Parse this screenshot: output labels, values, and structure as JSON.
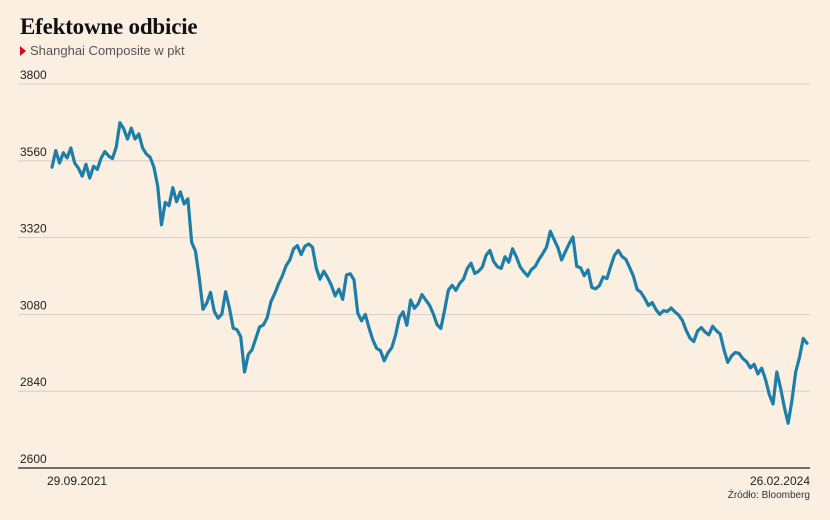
{
  "title": "Efektowne odbicie",
  "subtitle": "Shanghai Composite w pkt",
  "source": "Źródło: Bloomberg",
  "colors": {
    "line": "#1d7ea7",
    "marker": "#e3001b",
    "background": "#fbefe2",
    "grid": "#cfc8c0"
  },
  "chart_data": {
    "type": "line",
    "title": "Efektowne odbicie",
    "ylabel": "",
    "xlabel": "",
    "ylim": [
      2600,
      3800
    ],
    "yticks": [
      3800,
      3560,
      3320,
      3080,
      2840,
      2600
    ],
    "x_tick_labels": [
      "29.09.2021",
      "26.02.2024"
    ],
    "grid": true,
    "series": [
      {
        "values": [
          3540,
          3592,
          3553,
          3585,
          3569,
          3600,
          3553,
          3537,
          3512,
          3549,
          3506,
          3543,
          3533,
          3568,
          3589,
          3575,
          3567,
          3602,
          3679,
          3660,
          3628,
          3662,
          3628,
          3644,
          3600,
          3581,
          3571,
          3540,
          3481,
          3360,
          3430,
          3420,
          3476,
          3432,
          3463,
          3425,
          3441,
          3305,
          3278,
          3195,
          3096,
          3116,
          3149,
          3089,
          3068,
          3081,
          3151,
          3100,
          3037,
          3032,
          3010,
          2900,
          2955,
          2970,
          3005,
          3041,
          3047,
          3070,
          3120,
          3145,
          3175,
          3200,
          3232,
          3250,
          3285,
          3295,
          3267,
          3293,
          3300,
          3290,
          3225,
          3190,
          3215,
          3195,
          3171,
          3138,
          3159,
          3127,
          3203,
          3207,
          3188,
          3084,
          3060,
          3080,
          3037,
          3000,
          2974,
          2967,
          2935,
          2960,
          2976,
          3015,
          3070,
          3088,
          3046,
          3125,
          3099,
          3113,
          3142,
          3125,
          3109,
          3082,
          3048,
          3036,
          3093,
          3156,
          3171,
          3155,
          3177,
          3190,
          3223,
          3240,
          3208,
          3215,
          3228,
          3265,
          3280,
          3245,
          3229,
          3224,
          3260,
          3243,
          3285,
          3260,
          3229,
          3213,
          3200,
          3220,
          3230,
          3252,
          3270,
          3290,
          3340,
          3314,
          3289,
          3250,
          3276,
          3301,
          3322,
          3230,
          3226,
          3201,
          3219,
          3164,
          3160,
          3170,
          3197,
          3192,
          3230,
          3265,
          3280,
          3261,
          3252,
          3227,
          3200,
          3158,
          3149,
          3130,
          3108,
          3117,
          3095,
          3080,
          3092,
          3089,
          3100,
          3088,
          3078,
          3061,
          3030,
          3006,
          2995,
          3028,
          3039,
          3025,
          3016,
          3043,
          3029,
          3019,
          2970,
          2930,
          2950,
          2961,
          2958,
          2942,
          2932,
          2913,
          2924,
          2894,
          2912,
          2877,
          2830,
          2800,
          2900,
          2850,
          2790,
          2740,
          2810,
          2900,
          2945,
          3005,
          2990
        ]
      }
    ]
  }
}
